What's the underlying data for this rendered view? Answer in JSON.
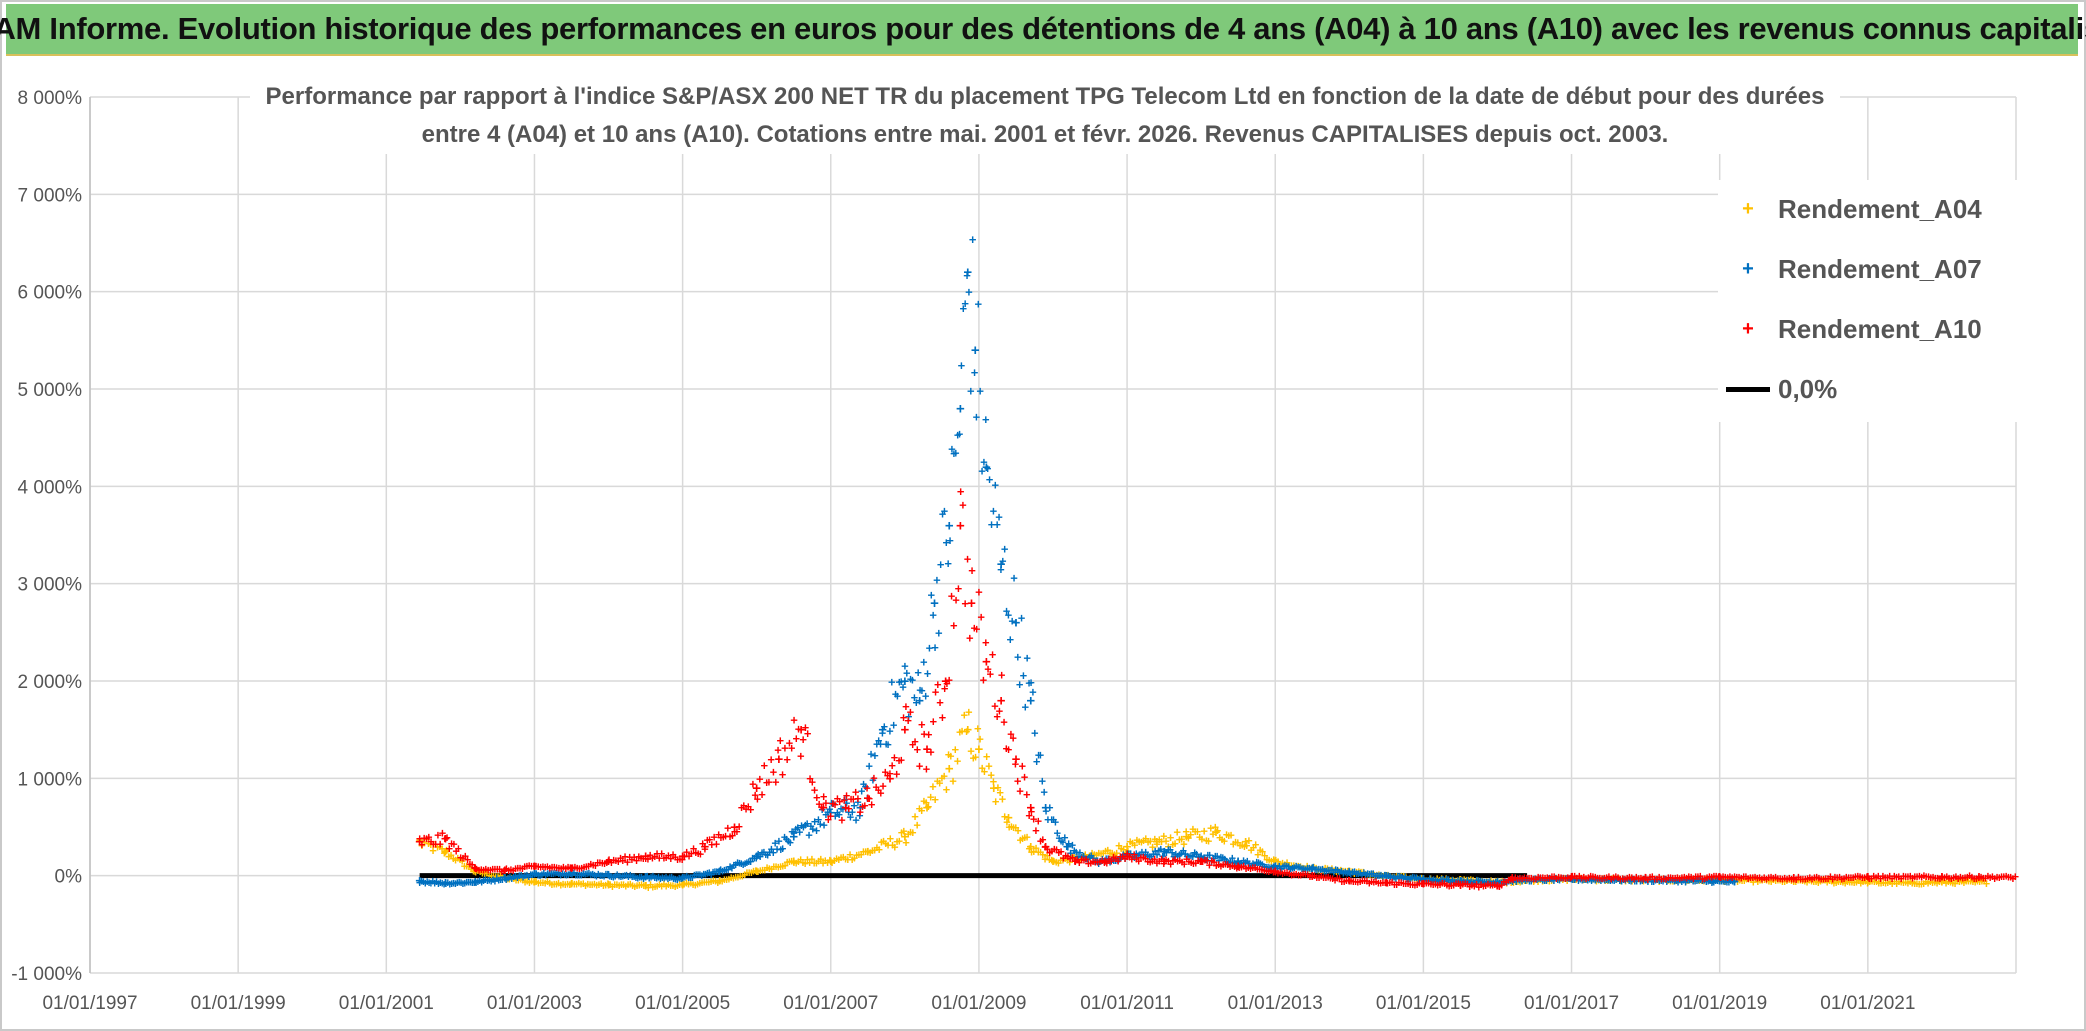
{
  "banner": {
    "title": "ADAM Informe. Evolution historique des performances en euros pour des détentions de 4 ans (A04) à 10 ans (A10) avec les revenus connus capitalisés"
  },
  "chart_data": {
    "type": "scatter",
    "title_line1": "Performance par rapport à l'indice S&P/ASX 200 NET TR  du placement TPG Telecom Ltd en fonction de la date de début pour des durées",
    "title_line2": "entre 4 (A04) et 10 ans (A10). Cotations entre mai. 2001 et févr. 2026. Revenus CAPITALISES depuis oct. 2003.",
    "x_range": [
      1997.0,
      2023.0
    ],
    "ylim": [
      -1000,
      8000
    ],
    "y_ticks": [
      -1000,
      0,
      1000,
      2000,
      3000,
      4000,
      5000,
      6000,
      7000,
      8000
    ],
    "y_tick_labels": [
      "-1 000%",
      "0%",
      "1 000%",
      "2 000%",
      "3 000%",
      "4 000%",
      "5 000%",
      "6 000%",
      "7 000%",
      "8 000%"
    ],
    "x_ticks": [
      1997,
      1999,
      2001,
      2003,
      2005,
      2007,
      2009,
      2011,
      2013,
      2015,
      2017,
      2019,
      2021
    ],
    "x_tick_labels": [
      "01/01/1997",
      "01/01/1999",
      "01/01/2001",
      "01/01/2003",
      "01/01/2005",
      "01/01/2007",
      "01/01/2009",
      "01/01/2011",
      "01/01/2013",
      "01/01/2015",
      "01/01/2017",
      "01/01/2019",
      "01/01/2021"
    ],
    "series": [
      {
        "name": "Rendement_A04",
        "color": "#ffc000",
        "x": [
          2001.45,
          2001.8,
          2002.2,
          2002.6,
          2003.0,
          2003.5,
          2004.0,
          2004.5,
          2005.0,
          2005.5,
          2006.0,
          2006.5,
          2007.0,
          2007.5,
          2008.0,
          2008.3,
          2008.6,
          2008.85,
          2009.0,
          2009.2,
          2009.4,
          2009.7,
          2010.0,
          2010.5,
          2011.0,
          2011.4,
          2011.8,
          2012.2,
          2012.6,
          2013.0,
          2013.5,
          2014.0,
          2014.5,
          2015.0,
          2015.5,
          2016.0,
          2016.5,
          2017.0,
          2018.0,
          2019.0,
          2020.0,
          2021.0,
          2021.6,
          2022.0
        ],
        "y": [
          350,
          250,
          50,
          -20,
          -60,
          -80,
          -90,
          -100,
          -90,
          -50,
          50,
          150,
          150,
          250,
          400,
          700,
          1100,
          1500,
          1300,
          900,
          600,
          300,
          150,
          200,
          300,
          350,
          400,
          450,
          350,
          150,
          80,
          50,
          0,
          -30,
          -40,
          -60,
          -40,
          -30,
          -40,
          -40,
          -50,
          -60,
          -70,
          -60
        ]
      },
      {
        "name": "Rendement_A07",
        "color": "#0070c0",
        "x": [
          2001.45,
          2001.8,
          2002.2,
          2002.6,
          2003.0,
          2003.5,
          2004.0,
          2004.5,
          2005.0,
          2005.5,
          2006.0,
          2006.5,
          2007.0,
          2007.4,
          2007.7,
          2008.0,
          2008.2,
          2008.4,
          2008.6,
          2008.75,
          2008.85,
          2008.95,
          2009.1,
          2009.3,
          2009.5,
          2009.7,
          2009.9,
          2010.2,
          2010.6,
          2011.0,
          2011.5,
          2012.0,
          2012.5,
          2013.0,
          2013.5,
          2014.0,
          2014.5,
          2015.0,
          2015.5,
          2016.0,
          2016.3,
          2017.0,
          2018.0,
          2018.9,
          2019.2
        ],
        "y": [
          -50,
          -70,
          -60,
          -20,
          20,
          30,
          10,
          -10,
          -20,
          50,
          200,
          400,
          650,
          700,
          1500,
          2000,
          1800,
          2800,
          3600,
          4800,
          6200,
          5400,
          4200,
          3200,
          2600,
          1800,
          700,
          300,
          150,
          200,
          250,
          200,
          150,
          100,
          80,
          40,
          0,
          -30,
          -50,
          -60,
          -40,
          -30,
          -40,
          -50,
          -60
        ]
      },
      {
        "name": "Rendement_A10",
        "color": "#ff0000",
        "x": [
          2001.45,
          2001.8,
          2002.2,
          2002.6,
          2003.0,
          2003.5,
          2004.0,
          2004.5,
          2005.0,
          2005.3,
          2005.7,
          2006.0,
          2006.3,
          2006.6,
          2006.9,
          2007.2,
          2007.5,
          2007.8,
          2008.0,
          2008.3,
          2008.55,
          2008.75,
          2008.9,
          2009.1,
          2009.3,
          2009.5,
          2009.7,
          2009.9,
          2010.3,
          2010.7,
          2011.0,
          2011.5,
          2012.0,
          2012.5,
          2013.0,
          2013.5,
          2014.0,
          2014.5,
          2015.0,
          2015.5,
          2016.0,
          2016.2,
          2017.0,
          2018.0,
          2019.0,
          2020.0,
          2021.0,
          2022.0,
          2022.5
        ],
        "y": [
          350,
          380,
          80,
          60,
          100,
          80,
          150,
          200,
          200,
          300,
          500,
          900,
          1200,
          1500,
          700,
          700,
          800,
          1000,
          1500,
          1300,
          2000,
          3600,
          2800,
          2200,
          1800,
          1200,
          700,
          300,
          150,
          150,
          200,
          150,
          150,
          100,
          50,
          0,
          -50,
          -70,
          -80,
          -90,
          -100,
          -20,
          -10,
          -20,
          -10,
          -20,
          -10,
          -10,
          -10
        ]
      },
      {
        "name": "0,0%",
        "color": "#000000",
        "x": [
          2001.45,
          2016.4
        ],
        "y": [
          0,
          0
        ]
      }
    ]
  }
}
